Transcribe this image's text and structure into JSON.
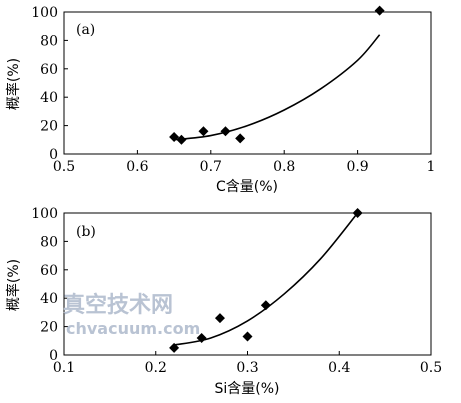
{
  "chart_data": [
    {
      "type": "scatter",
      "panel_label": "(a)",
      "xlabel": "C含量(%)",
      "ylabel": "概率(%)",
      "xlim": [
        0.5,
        1.0
      ],
      "ylim": [
        0,
        100
      ],
      "xticks": [
        "0.5",
        "0.6",
        "0.7",
        "0.8",
        "0.9",
        "1"
      ],
      "yticks": [
        "0",
        "20",
        "40",
        "60",
        "80",
        "100"
      ],
      "grid": false,
      "points": [
        {
          "x": 0.65,
          "y": 12
        },
        {
          "x": 0.66,
          "y": 10
        },
        {
          "x": 0.69,
          "y": 16
        },
        {
          "x": 0.72,
          "y": 16
        },
        {
          "x": 0.74,
          "y": 11
        },
        {
          "x": 0.93,
          "y": 101
        }
      ],
      "fit_curve": [
        {
          "x": 0.65,
          "y": 10
        },
        {
          "x": 0.7,
          "y": 13
        },
        {
          "x": 0.75,
          "y": 20
        },
        {
          "x": 0.8,
          "y": 31
        },
        {
          "x": 0.85,
          "y": 46
        },
        {
          "x": 0.9,
          "y": 66
        },
        {
          "x": 0.93,
          "y": 84
        }
      ]
    },
    {
      "type": "scatter",
      "panel_label": "(b)",
      "xlabel": "Si含量(%)",
      "ylabel": "概率(%)",
      "xlim": [
        0.1,
        0.5
      ],
      "ylim": [
        0,
        100
      ],
      "xticks": [
        "0.1",
        "0.2",
        "0.3",
        "0.4",
        "0.5"
      ],
      "yticks": [
        "0",
        "20",
        "40",
        "60",
        "80",
        "100"
      ],
      "grid": false,
      "points": [
        {
          "x": 0.22,
          "y": 5
        },
        {
          "x": 0.25,
          "y": 12
        },
        {
          "x": 0.27,
          "y": 26
        },
        {
          "x": 0.3,
          "y": 13
        },
        {
          "x": 0.32,
          "y": 35
        },
        {
          "x": 0.42,
          "y": 100
        }
      ],
      "fit_curve": [
        {
          "x": 0.22,
          "y": 7
        },
        {
          "x": 0.26,
          "y": 12
        },
        {
          "x": 0.3,
          "y": 24
        },
        {
          "x": 0.34,
          "y": 43
        },
        {
          "x": 0.38,
          "y": 68
        },
        {
          "x": 0.42,
          "y": 100
        }
      ]
    }
  ],
  "watermark": {
    "text_cn": "真空技术网",
    "text_url": "chvacuum.com",
    "color": "#b9c3d3"
  }
}
